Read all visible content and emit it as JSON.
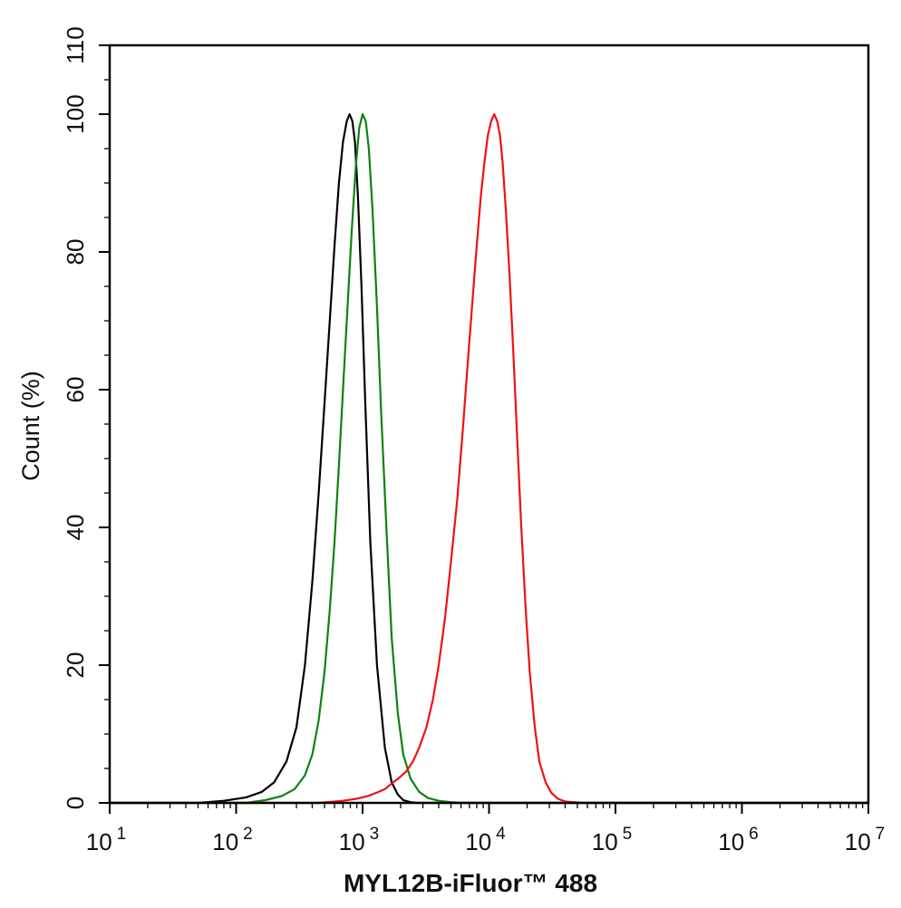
{
  "chart_data": {
    "type": "line",
    "title": "",
    "xlabel": "MYL12B-iFluor™ 488",
    "ylabel": "Count  (%)",
    "x_scale": "log",
    "xlim": [
      10,
      10000000
    ],
    "ylim": [
      0,
      110
    ],
    "x_ticks": [
      {
        "base": "10",
        "exp": "1"
      },
      {
        "base": "10",
        "exp": "2"
      },
      {
        "base": "10",
        "exp": "3"
      },
      {
        "base": "10",
        "exp": "4"
      },
      {
        "base": "10",
        "exp": "5"
      },
      {
        "base": "10",
        "exp": "6"
      },
      {
        "base": "10",
        "exp": "7"
      }
    ],
    "y_ticks": [
      "0",
      "20",
      "40",
      "60",
      "80",
      "100",
      "110"
    ],
    "grid": false,
    "legend": "none",
    "series": [
      {
        "color": "#000000",
        "x": [
          50,
          80,
          120,
          160,
          200,
          250,
          300,
          350,
          400,
          450,
          500,
          550,
          600,
          650,
          700,
          750,
          790,
          830,
          870,
          920,
          980,
          1050,
          1150,
          1300,
          1500,
          1700,
          1900,
          2100,
          2400,
          2700,
          3000
        ],
        "y": [
          0,
          0.3,
          0.8,
          1.6,
          3,
          6,
          11,
          20,
          32,
          45,
          58,
          70,
          81,
          90,
          96,
          99,
          100,
          99,
          96,
          88,
          75,
          58,
          38,
          20,
          8,
          3,
          1.2,
          0.4,
          0.1,
          0,
          0
        ]
      },
      {
        "color": "#118011",
        "x": [
          120,
          170,
          230,
          290,
          350,
          400,
          450,
          500,
          550,
          600,
          650,
          700,
          760,
          820,
          880,
          940,
          1000,
          1060,
          1120,
          1200,
          1300,
          1400,
          1550,
          1700,
          1900,
          2100,
          2400,
          2800,
          3300,
          4000,
          5000,
          6000
        ],
        "y": [
          0,
          0.4,
          1,
          2,
          4,
          7,
          12,
          19,
          28,
          38,
          49,
          60,
          72,
          83,
          92,
          98,
          100,
          99,
          95,
          86,
          72,
          57,
          39,
          24,
          13,
          7,
          3.5,
          1.6,
          0.7,
          0.3,
          0.1,
          0
        ]
      },
      {
        "color": "#ee1111",
        "x": [
          450,
          700,
          900,
          1100,
          1300,
          1500,
          1700,
          1900,
          2200,
          2500,
          2800,
          3200,
          3600,
          4000,
          4500,
          5000,
          5600,
          6200,
          6800,
          7400,
          8000,
          8600,
          9200,
          9800,
          10400,
          11000,
          11600,
          12200,
          12800,
          13600,
          14500,
          15500,
          16800,
          18000,
          19500,
          21000,
          23000,
          25000,
          28000,
          31000,
          35000,
          40000,
          46000,
          55000,
          70000
        ],
        "y": [
          0,
          0.3,
          0.6,
          1,
          1.5,
          2,
          2.8,
          3.5,
          4.5,
          6,
          8,
          11,
          15,
          20,
          27,
          35,
          44,
          54,
          64,
          73,
          81,
          88,
          93,
          97,
          99,
          100,
          99,
          97,
          93,
          86,
          77,
          66,
          52,
          40,
          28,
          19,
          11,
          6,
          3,
          1.5,
          0.6,
          0.2,
          0.1,
          0,
          0
        ]
      }
    ]
  }
}
